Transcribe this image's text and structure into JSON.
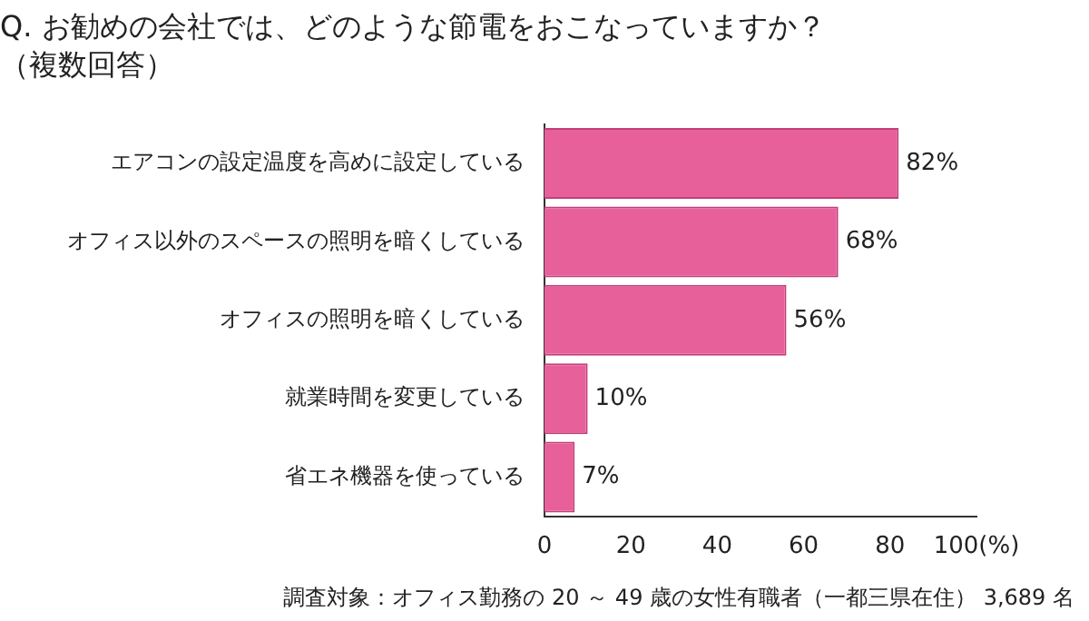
{
  "chart_data": {
    "type": "bar",
    "orientation": "horizontal",
    "title": "Q. お勧めの会社では、どのような節電をおこなっていますか？",
    "subtitle": "（複数回答）",
    "categories": [
      "エアコンの設定温度を高めに設定している",
      "オフィス以外のスペースの照明を暗くしている",
      "オフィスの照明を暗くしている",
      "就業時間を変更している",
      "省エネ機器を使っている"
    ],
    "values": [
      82,
      68,
      56,
      10,
      7
    ],
    "value_labels": [
      "82%",
      "68%",
      "56%",
      "10%",
      "7%"
    ],
    "color": "#e8609a",
    "xlim": [
      0,
      100
    ],
    "xticks": [
      0,
      20,
      40,
      60,
      80,
      {
        "value": 100,
        "label": "100(%)"
      }
    ],
    "grid": false,
    "legend": false,
    "annotations": [
      "調査対象：オフィス勤務の 20 ～ 49 歳の女性有職者（一都三県在住） 3,689 名"
    ]
  }
}
